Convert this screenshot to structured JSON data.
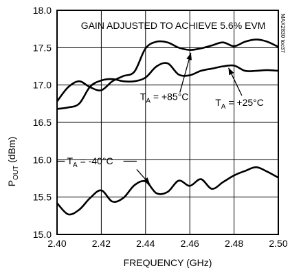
{
  "chart_data": {
    "type": "line",
    "title": "",
    "xlabel": "FREQUENCY (GHz)",
    "ylabel": {
      "main": "P",
      "sub": "OUT",
      "unit": " (dBm)"
    },
    "xlim": [
      2.4,
      2.5
    ],
    "ylim": [
      15.0,
      18.0
    ],
    "x_ticks": [
      "2.40",
      "2.42",
      "2.44",
      "2.46",
      "2.48",
      "2.50"
    ],
    "y_ticks": [
      "15.0",
      "15.5",
      "16.0",
      "16.5",
      "17.0",
      "17.5",
      "18.0"
    ],
    "grid": true,
    "legend": "none",
    "note": "GAIN ADJUSTED TO ACHIEVE 5.6% EVM",
    "figure_id": "MAX2830 toc37",
    "series": [
      {
        "label_main": "T",
        "label_sub": "A",
        "label_value": " = +85°C",
        "x": [
          2.4,
          2.405,
          2.41,
          2.415,
          2.42,
          2.425,
          2.43,
          2.435,
          2.44,
          2.445,
          2.45,
          2.455,
          2.46,
          2.465,
          2.47,
          2.475,
          2.48,
          2.485,
          2.49,
          2.495,
          2.5
        ],
        "values": [
          16.78,
          16.97,
          17.05,
          16.97,
          16.93,
          17.05,
          17.12,
          17.18,
          17.49,
          17.58,
          17.57,
          17.5,
          17.47,
          17.49,
          17.53,
          17.57,
          17.52,
          17.58,
          17.61,
          17.58,
          17.51
        ]
      },
      {
        "label_main": "T",
        "label_sub": "A",
        "label_value": " = +25°C",
        "x": [
          2.4,
          2.405,
          2.41,
          2.415,
          2.42,
          2.425,
          2.43,
          2.435,
          2.44,
          2.445,
          2.45,
          2.455,
          2.46,
          2.465,
          2.47,
          2.475,
          2.48,
          2.485,
          2.49,
          2.495,
          2.5
        ],
        "values": [
          16.68,
          16.7,
          16.75,
          16.98,
          17.06,
          17.08,
          17.05,
          17.05,
          17.1,
          17.25,
          17.29,
          17.14,
          17.13,
          17.19,
          17.22,
          17.25,
          17.26,
          17.19,
          17.19,
          17.2,
          17.19
        ]
      },
      {
        "label_main": "T",
        "label_sub": "A",
        "label_value": " = -40°C",
        "x": [
          2.4,
          2.405,
          2.41,
          2.415,
          2.42,
          2.425,
          2.43,
          2.435,
          2.44,
          2.445,
          2.45,
          2.455,
          2.46,
          2.465,
          2.47,
          2.475,
          2.48,
          2.485,
          2.49,
          2.495,
          2.5
        ],
        "values": [
          15.42,
          15.27,
          15.33,
          15.49,
          15.59,
          15.44,
          15.49,
          15.66,
          15.71,
          15.55,
          15.57,
          15.72,
          15.65,
          15.74,
          15.61,
          15.7,
          15.79,
          15.85,
          15.9,
          15.84,
          15.76
        ]
      }
    ]
  }
}
